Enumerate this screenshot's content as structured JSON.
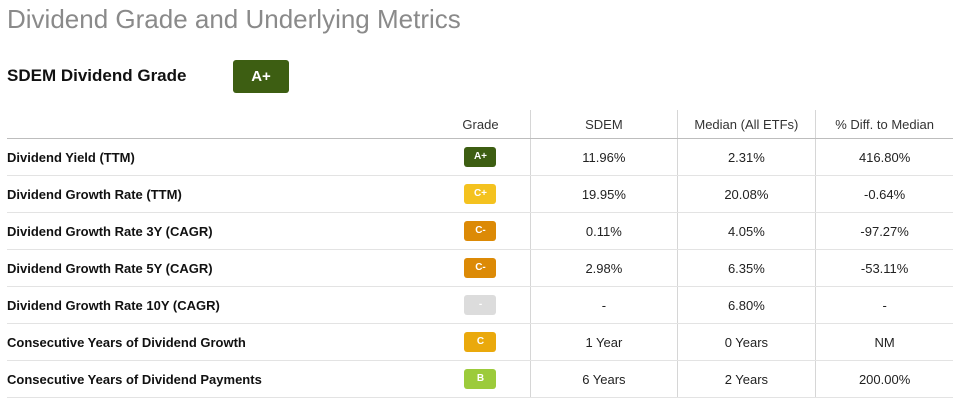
{
  "page_title": "Dividend Grade and Underlying Metrics",
  "grade_section": {
    "heading": "SDEM Dividend Grade",
    "overall_grade": "A+",
    "overall_grade_color": "#3d5e12"
  },
  "table": {
    "headers": {
      "metric": "",
      "grade": "Grade",
      "sdem": "SDEM",
      "median": "Median (All ETFs)",
      "diff": "% Diff. to Median"
    },
    "rows": [
      {
        "metric": "Dividend Yield (TTM)",
        "grade": "A+",
        "grade_color": "#3d5e12",
        "sdem": "11.96%",
        "median": "2.31%",
        "diff": "416.80%"
      },
      {
        "metric": "Dividend Growth Rate (TTM)",
        "grade": "C+",
        "grade_color": "#f4c21f",
        "sdem": "19.95%",
        "median": "20.08%",
        "diff": "-0.64%"
      },
      {
        "metric": "Dividend Growth Rate 3Y (CAGR)",
        "grade": "C-",
        "grade_color": "#dc8a06",
        "sdem": "0.11%",
        "median": "4.05%",
        "diff": "-97.27%"
      },
      {
        "metric": "Dividend Growth Rate 5Y (CAGR)",
        "grade": "C-",
        "grade_color": "#dc8a06",
        "sdem": "2.98%",
        "median": "6.35%",
        "diff": "-53.11%"
      },
      {
        "metric": "Dividend Growth Rate 10Y (CAGR)",
        "grade": "-",
        "grade_color": "#dcdcdc",
        "sdem": "-",
        "median": "6.80%",
        "diff": "-"
      },
      {
        "metric": "Consecutive Years of Dividend Growth",
        "grade": "C",
        "grade_color": "#eaa90c",
        "sdem": "1 Year",
        "median": "0 Years",
        "diff": "NM"
      },
      {
        "metric": "Consecutive Years of Dividend Payments",
        "grade": "B",
        "grade_color": "#9ccb3b",
        "sdem": "6 Years",
        "median": "2 Years",
        "diff": "200.00%"
      }
    ]
  }
}
